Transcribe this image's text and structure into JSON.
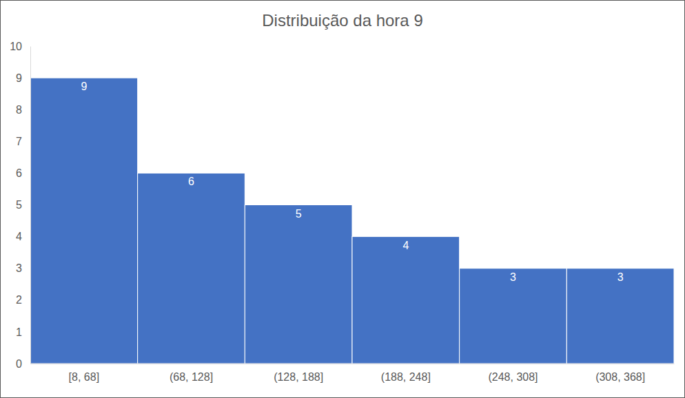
{
  "chart_data": {
    "type": "bar",
    "title": "Distribuição da hora 9",
    "categories": [
      "[8, 68]",
      "(68, 128]",
      "(128, 188]",
      "(188, 248]",
      "(248, 308]",
      "(308, 368]"
    ],
    "values": [
      9,
      6,
      5,
      4,
      3,
      3
    ],
    "color": "#4472c4",
    "ylim": [
      0,
      10
    ],
    "yticks": [
      0,
      1,
      2,
      3,
      4,
      5,
      6,
      7,
      8,
      9,
      10
    ],
    "grid": false,
    "data_labels": true
  }
}
